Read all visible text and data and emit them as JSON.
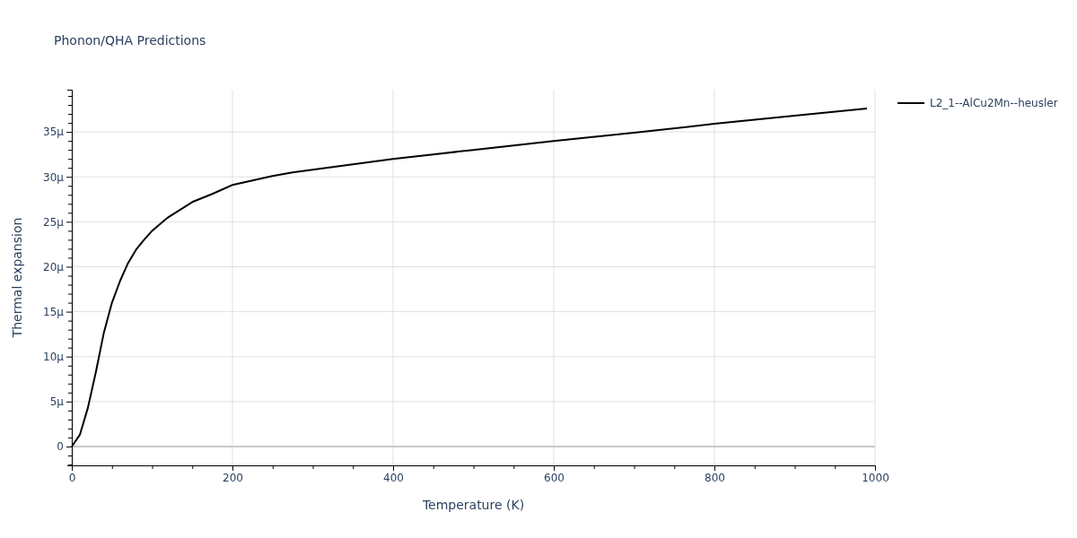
{
  "chart_data": {
    "type": "line",
    "title": "Phonon/QHA Predictions",
    "xlabel": "Temperature (K)",
    "ylabel": "Thermal expansion",
    "x": [
      0,
      10,
      20,
      30,
      40,
      50,
      60,
      70,
      80,
      90,
      100,
      120,
      150,
      175,
      200,
      225,
      250,
      275,
      300,
      350,
      400,
      450,
      500,
      600,
      700,
      800,
      900,
      990
    ],
    "series": [
      {
        "name": "L2_1--AlCu2Mn--heusler",
        "color": "#000000",
        "values": [
          0,
          1.3,
          4.3,
          8.3,
          12.7,
          16.0,
          18.4,
          20.4,
          21.9,
          23.0,
          24.0,
          25.5,
          27.2,
          28.1,
          29.1,
          29.6,
          30.1,
          30.5,
          30.8,
          31.4,
          32.0,
          32.5,
          33.0,
          34.0,
          34.9,
          35.9,
          36.8,
          37.6
        ]
      }
    ],
    "xlim": [
      0,
      1000
    ],
    "xticks": [
      0,
      {
        "value": 50,
        "label": null
      },
      {
        "value": 100,
        "label": null
      },
      {
        "value": 150,
        "label": null
      },
      200,
      {
        "value": 250,
        "label": null
      },
      {
        "value": 300,
        "label": null
      },
      {
        "value": 350,
        "label": null
      },
      400,
      {
        "value": 450,
        "label": null
      },
      {
        "value": 500,
        "label": null
      },
      {
        "value": 550,
        "label": null
      },
      600,
      {
        "value": 650,
        "label": null
      },
      {
        "value": 700,
        "label": null
      },
      {
        "value": 750,
        "label": null
      },
      800,
      {
        "value": 850,
        "label": null
      },
      {
        "value": 900,
        "label": null
      },
      {
        "value": 950,
        "label": null
      },
      1000
    ],
    "ylim": [
      -2.1,
      39.7
    ],
    "yticks": [
      {
        "value": -2,
        "label": null
      },
      {
        "value": -1,
        "label": null
      },
      0,
      {
        "value": 1,
        "label": null
      },
      {
        "value": 2,
        "label": null
      },
      {
        "value": 3,
        "label": null
      },
      {
        "value": 4,
        "label": null
      },
      {
        "value": 5,
        "label": "5µ"
      },
      {
        "value": 6,
        "label": null
      },
      {
        "value": 7,
        "label": null
      },
      {
        "value": 8,
        "label": null
      },
      {
        "value": 9,
        "label": null
      },
      {
        "value": 10,
        "label": "10µ"
      },
      {
        "value": 11,
        "label": null
      },
      {
        "value": 12,
        "label": null
      },
      {
        "value": 13,
        "label": null
      },
      {
        "value": 14,
        "label": null
      },
      {
        "value": 15,
        "label": "15µ"
      },
      {
        "value": 16,
        "label": null
      },
      {
        "value": 17,
        "label": null
      },
      {
        "value": 18,
        "label": null
      },
      {
        "value": 19,
        "label": null
      },
      {
        "value": 20,
        "label": "20µ"
      },
      {
        "value": 21,
        "label": null
      },
      {
        "value": 22,
        "label": null
      },
      {
        "value": 23,
        "label": null
      },
      {
        "value": 24,
        "label": null
      },
      {
        "value": 25,
        "label": "25µ"
      },
      {
        "value": 26,
        "label": null
      },
      {
        "value": 27,
        "label": null
      },
      {
        "value": 28,
        "label": null
      },
      {
        "value": 29,
        "label": null
      },
      {
        "value": 30,
        "label": "30µ"
      },
      {
        "value": 31,
        "label": null
      },
      {
        "value": 32,
        "label": null
      },
      {
        "value": 33,
        "label": null
      },
      {
        "value": 34,
        "label": null
      },
      {
        "value": 35,
        "label": "35µ"
      },
      {
        "value": 36,
        "label": null
      },
      {
        "value": 37,
        "label": null
      },
      {
        "value": 38,
        "label": null
      },
      {
        "value": 39,
        "label": null
      }
    ],
    "grid": true,
    "legend": "top right",
    "marker": "none",
    "line_style": "solid"
  }
}
